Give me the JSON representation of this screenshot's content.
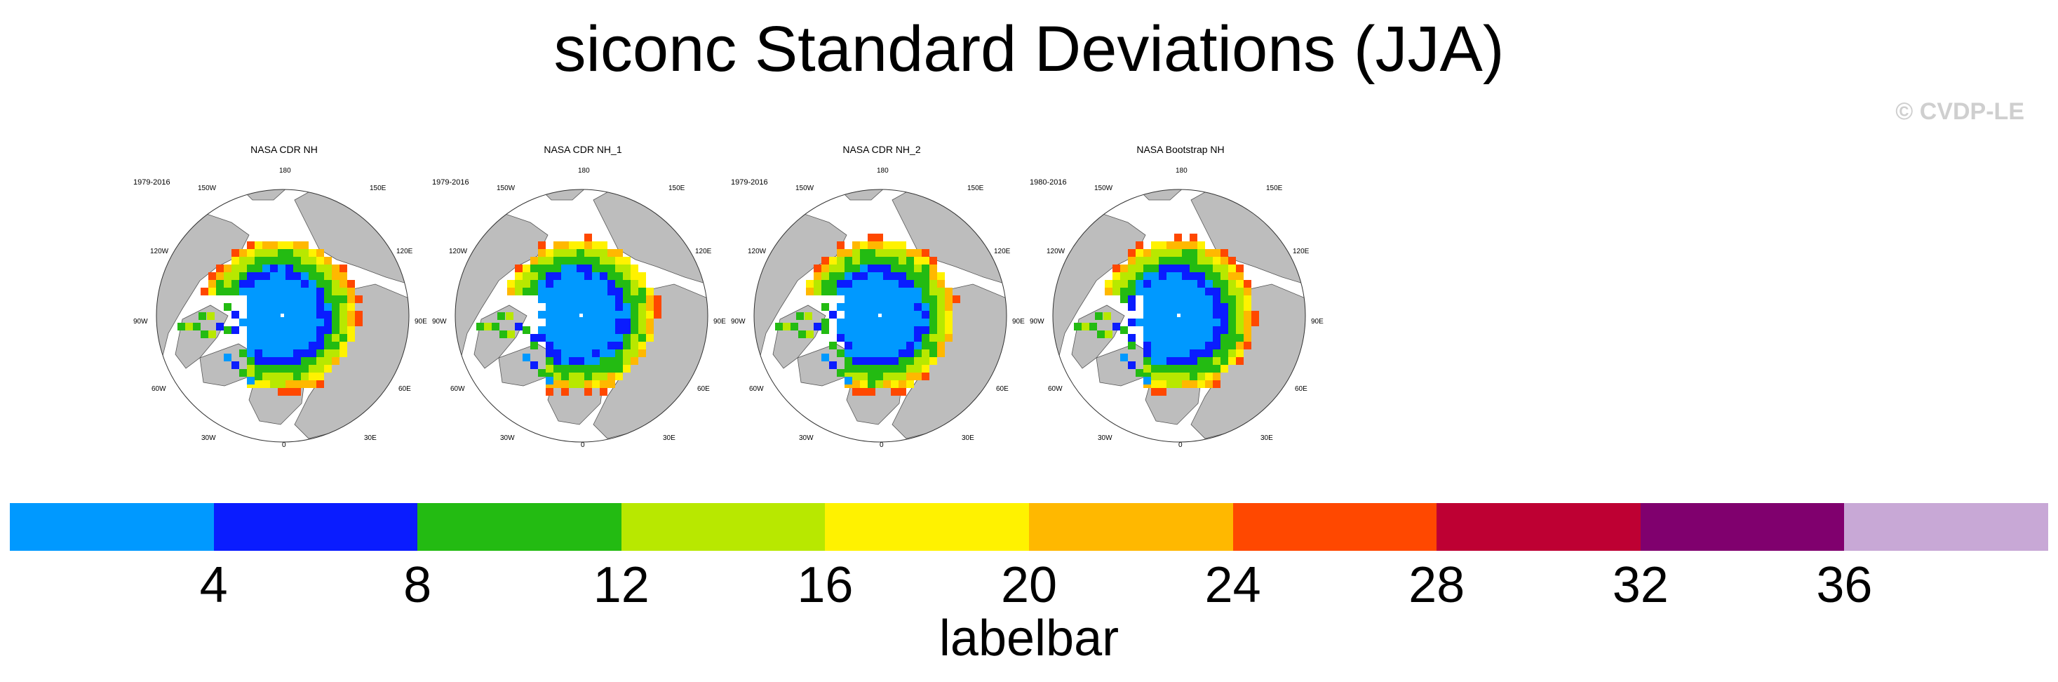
{
  "title": "siconc Standard Deviations (JJA)",
  "watermark": "© CVDP-LE",
  "colors": {
    "land": "#bdbdbd",
    "ocean": "#ffffff",
    "coast": "#555555"
  },
  "longitude_labels": {
    "l180": "180",
    "l150W": "150W",
    "l150E": "150E",
    "l120W": "120W",
    "l120E": "120E",
    "l90W": "90W",
    "l90E": "90E",
    "l60W": "60W",
    "l60E": "60E",
    "l30W": "30W",
    "l30E": "30E",
    "l0": "0"
  },
  "panels": [
    {
      "title": "NASA CDR NH",
      "years": "1979-2016"
    },
    {
      "title": "NASA CDR NH_1",
      "years": "1979-2016"
    },
    {
      "title": "NASA CDR NH_2",
      "years": "1979-2016"
    },
    {
      "title": "NASA Bootstrap NH",
      "years": "1980-2016"
    }
  ],
  "labelbar": {
    "label": "labelbar",
    "ticks": [
      "4",
      "8",
      "12",
      "16",
      "20",
      "24",
      "28",
      "32",
      "36"
    ],
    "colors": [
      "#0099ff",
      "#0a1cff",
      "#23bb12",
      "#b8e800",
      "#fff200",
      "#ffb800",
      "#ff4800",
      "#be0033",
      "#80006e",
      "#c8a8d6"
    ]
  }
}
